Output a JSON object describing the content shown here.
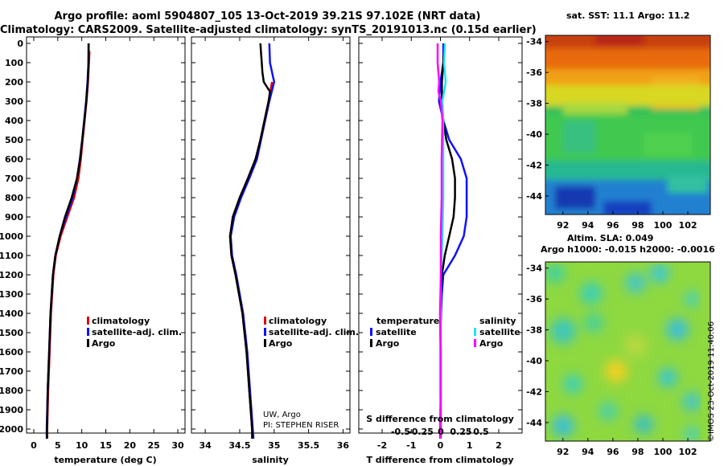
{
  "header": {
    "title_line1": "Argo profile: aoml 5904807_105 13-Oct-2019 39.21S 97.102E (NRT data)",
    "title_line2": "Climatology: CARS2009. Satellite-adjusted climatology: synTS_20191013.nc (0.15d earlier)"
  },
  "colors": {
    "climatology": "#e00000",
    "satellite": "#1010ff",
    "argo": "#000000",
    "sat_salinity": "#20e0ff",
    "argo_salinity": "#ff00ff"
  },
  "depth_axis": {
    "ticks": [
      0,
      100,
      200,
      300,
      400,
      500,
      600,
      700,
      800,
      900,
      1000,
      1100,
      1200,
      1300,
      1400,
      1500,
      1600,
      1700,
      1800,
      1900,
      2000
    ],
    "range": [
      0,
      2050
    ]
  },
  "chart_data": [
    {
      "id": "temperature",
      "type": "line",
      "xlabel": "temperature (deg C)",
      "xlim": [
        -1.5,
        31.5
      ],
      "xticks": [
        0,
        5,
        10,
        15,
        20,
        25,
        30
      ],
      "legend": [
        "climatology",
        "satellite-adj. clim.",
        "Argo"
      ],
      "series": [
        {
          "name": "climatology",
          "depth": [
            40,
            100,
            200,
            300,
            400,
            500,
            600,
            700,
            800,
            900,
            1000,
            1100,
            1200,
            1400,
            1600,
            1800,
            2000,
            2050
          ],
          "values": [
            11.6,
            11.5,
            11.3,
            11.0,
            10.6,
            10.2,
            9.8,
            9.3,
            8.4,
            7.0,
            5.6,
            4.6,
            4.1,
            3.6,
            3.3,
            3.0,
            2.8,
            2.8
          ]
        },
        {
          "name": "satellite-adj. clim.",
          "depth": [
            0,
            100,
            200,
            300,
            400,
            500,
            600,
            700,
            800,
            900,
            1000,
            1100,
            1200,
            1400,
            1600,
            1800,
            2000,
            2050
          ],
          "values": [
            11.4,
            11.4,
            11.2,
            10.9,
            10.5,
            10.1,
            9.6,
            9.0,
            8.1,
            6.7,
            5.4,
            4.5,
            4.0,
            3.5,
            3.2,
            2.9,
            2.7,
            2.7
          ]
        },
        {
          "name": "Argo",
          "depth": [
            0,
            100,
            200,
            300,
            400,
            500,
            600,
            700,
            800,
            900,
            1000,
            1100,
            1200,
            1400,
            1600,
            1800,
            2000,
            2050
          ],
          "values": [
            11.45,
            11.4,
            11.25,
            10.95,
            10.55,
            10.1,
            9.65,
            9.0,
            7.9,
            6.5,
            5.4,
            4.5,
            4.0,
            3.5,
            3.2,
            2.9,
            2.75,
            2.75
          ]
        }
      ]
    },
    {
      "id": "salinity",
      "type": "line",
      "xlabel": "salinity",
      "xlim": [
        33.8,
        36.1
      ],
      "xticks": [
        34,
        34.5,
        35,
        35.5,
        36
      ],
      "xtick_labels": [
        "34",
        "34.5",
        "35",
        "35.5",
        "36"
      ],
      "legend": [
        "climatology",
        "satellite-adj. clim.",
        "Argo"
      ],
      "series": [
        {
          "name": "climatology",
          "depth": [
            200,
            300,
            400,
            500,
            600,
            700,
            800,
            900,
            1000,
            1100,
            1200,
            1400,
            1600,
            1800,
            2000,
            2050
          ],
          "values": [
            34.97,
            34.92,
            34.86,
            34.8,
            34.73,
            34.62,
            34.5,
            34.4,
            34.36,
            34.38,
            34.44,
            34.54,
            34.6,
            34.64,
            34.68,
            34.69
          ]
        },
        {
          "name": "satellite-adj. clim.",
          "depth": [
            0,
            100,
            200,
            300,
            400,
            500,
            600,
            700,
            800,
            900,
            1000,
            1100,
            1200,
            1400,
            1600,
            1800,
            2000,
            2050
          ],
          "values": [
            34.93,
            34.94,
            35.0,
            34.93,
            34.87,
            34.81,
            34.75,
            34.64,
            34.52,
            34.42,
            34.37,
            34.39,
            34.45,
            34.55,
            34.61,
            34.65,
            34.69,
            34.7
          ]
        },
        {
          "name": "Argo",
          "depth": [
            0,
            50,
            100,
            150,
            200,
            250,
            300,
            400,
            500,
            600,
            700,
            800,
            900,
            1000,
            1100,
            1200,
            1400,
            1600,
            1800,
            2000,
            2050
          ],
          "values": [
            34.8,
            34.81,
            34.82,
            34.83,
            34.85,
            34.94,
            34.92,
            34.86,
            34.8,
            34.73,
            34.62,
            34.5,
            34.4,
            34.36,
            34.38,
            34.44,
            34.54,
            34.6,
            34.64,
            34.68,
            34.68
          ]
        }
      ],
      "annotations": [
        "UW, Argo",
        "PI: STEPHEN RISER"
      ]
    },
    {
      "id": "differences",
      "type": "line",
      "xlabel": "T difference from climatology",
      "xlim": [
        -2.8,
        2.8
      ],
      "xticks": [
        -2,
        -1,
        0,
        1,
        2
      ],
      "top_axis_label": "S difference from climatology",
      "top_ticks": [
        -0.5,
        -0.25,
        0,
        0.25,
        0.5
      ],
      "top_tick_labels": [
        "-0.5",
        "-0.25",
        "0",
        "0.25",
        "0.5"
      ],
      "legend_left_title": "temperature",
      "legend_right_title": "salinity",
      "legend_left": [
        "satellite",
        "Argo"
      ],
      "legend_right": [
        "satellite",
        "Argo"
      ],
      "series": [
        {
          "name": "temperature satellite",
          "depth": [
            0,
            100,
            200,
            300,
            400,
            500,
            600,
            700,
            800,
            900,
            1000,
            1100,
            1200,
            1300,
            1500,
            1700,
            2000,
            2050
          ],
          "values": [
            0.1,
            0.1,
            0.0,
            -0.05,
            0.1,
            0.3,
            0.7,
            0.9,
            0.9,
            0.9,
            0.8,
            0.5,
            0.1,
            0.05,
            0.0,
            0.0,
            0.0,
            0.0
          ]
        },
        {
          "name": "temperature Argo",
          "depth": [
            0,
            100,
            200,
            300,
            400,
            500,
            600,
            700,
            800,
            900,
            1000,
            1100,
            1200,
            1300,
            1500,
            1700,
            2000,
            2050
          ],
          "values": [
            0.15,
            0.1,
            0.05,
            0.05,
            0.1,
            0.2,
            0.4,
            0.5,
            0.5,
            0.45,
            0.3,
            0.15,
            0.05,
            0.02,
            0.0,
            0.0,
            0.0,
            0.0
          ]
        },
        {
          "name": "salinity satellite",
          "depth": [
            0,
            100,
            200,
            300,
            400,
            600,
            800,
            1000,
            1200,
            1400,
            1600,
            1800,
            2000,
            2050
          ],
          "values": [
            0.05,
            0.04,
            0.06,
            0.02,
            0.03,
            0.03,
            0.03,
            0.02,
            0.0,
            0.0,
            -0.01,
            -0.01,
            0.0,
            0.0
          ]
        },
        {
          "name": "salinity Argo",
          "depth": [
            0,
            100,
            200,
            250,
            300,
            400,
            600,
            800,
            1000,
            1200,
            1400,
            1600,
            1800,
            2000,
            2050
          ],
          "values": [
            -0.04,
            -0.04,
            -0.02,
            -0.03,
            0.0,
            0.02,
            0.01,
            0.01,
            0.0,
            0.0,
            -0.01,
            0.0,
            0.0,
            0.0,
            0.0
          ]
        }
      ]
    },
    {
      "id": "sst_map",
      "type": "heatmap",
      "title": "sat. SST: 11.1 Argo: 11.2",
      "xticks": [
        92,
        94,
        96,
        98,
        100,
        102
      ],
      "yticks": [
        -34,
        -36,
        -38,
        -40,
        -42,
        -44
      ],
      "lon_range": [
        90.6,
        103.8
      ],
      "lat_range": [
        -45.2,
        -33.6
      ]
    },
    {
      "id": "sla_map",
      "type": "heatmap",
      "title_line1": "Altim. SLA: 0.049",
      "title_line2": "Argo h1000: -0.015 h2000: -0.0016",
      "xticks": [
        92,
        94,
        96,
        98,
        100,
        102
      ],
      "yticks": [
        -34,
        -36,
        -38,
        -40,
        -42,
        -44
      ],
      "lon_range": [
        90.6,
        103.8
      ],
      "lat_range": [
        -45.2,
        -33.6
      ]
    }
  ],
  "credit": "©IMOS 23-Oct-2019 11:40:06"
}
